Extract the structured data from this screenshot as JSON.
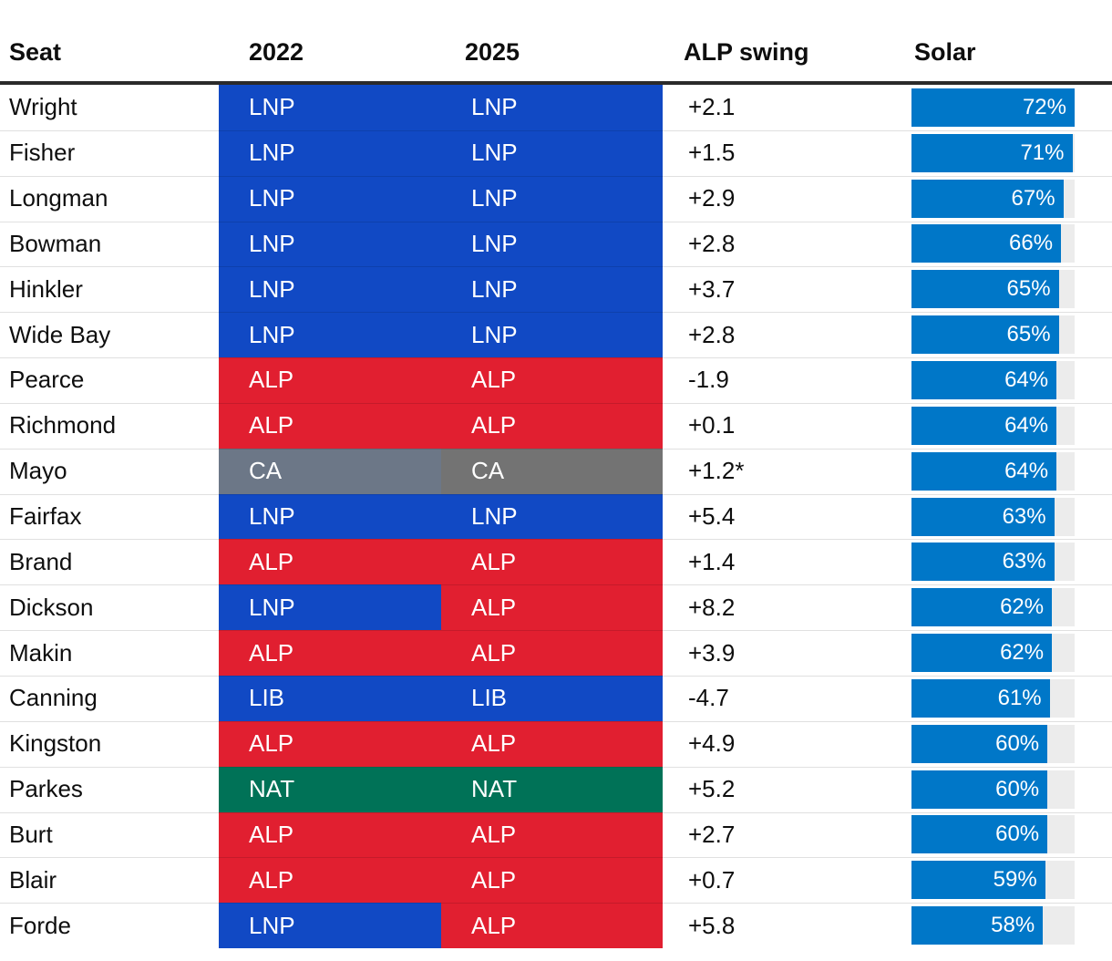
{
  "header": {
    "columns": [
      "Seat",
      "2022",
      "2025",
      "ALP swing",
      "Solar"
    ]
  },
  "party_colors": {
    "2022": {
      "LNP": "#1149c4",
      "LIB": "#1149c4",
      "ALP": "#e11f30",
      "CA": "#6c7787",
      "NAT": "#007257"
    },
    "2025": {
      "LNP": "#1149c4",
      "LIB": "#1149c4",
      "ALP": "#e11f30",
      "CA": "#737373",
      "NAT": "#007257"
    }
  },
  "solar_bar_color": "#0077c8",
  "solar_track_color": "#ececec",
  "chart_data": {
    "type": "table",
    "columns": [
      "Seat",
      "2022",
      "2025",
      "ALP swing",
      "Solar"
    ],
    "solar_axis_max": 72,
    "rows": [
      {
        "seat": "Wright",
        "party_2022": "LNP",
        "party_2025": "LNP",
        "alp_swing": "+2.1",
        "solar_pct": 72,
        "solar_label": "72%"
      },
      {
        "seat": "Fisher",
        "party_2022": "LNP",
        "party_2025": "LNP",
        "alp_swing": "+1.5",
        "solar_pct": 71,
        "solar_label": "71%"
      },
      {
        "seat": "Longman",
        "party_2022": "LNP",
        "party_2025": "LNP",
        "alp_swing": "+2.9",
        "solar_pct": 67,
        "solar_label": "67%"
      },
      {
        "seat": "Bowman",
        "party_2022": "LNP",
        "party_2025": "LNP",
        "alp_swing": "+2.8",
        "solar_pct": 66,
        "solar_label": "66%"
      },
      {
        "seat": "Hinkler",
        "party_2022": "LNP",
        "party_2025": "LNP",
        "alp_swing": "+3.7",
        "solar_pct": 65,
        "solar_label": "65%"
      },
      {
        "seat": "Wide Bay",
        "party_2022": "LNP",
        "party_2025": "LNP",
        "alp_swing": "+2.8",
        "solar_pct": 65,
        "solar_label": "65%"
      },
      {
        "seat": "Pearce",
        "party_2022": "ALP",
        "party_2025": "ALP",
        "alp_swing": "-1.9",
        "solar_pct": 64,
        "solar_label": "64%"
      },
      {
        "seat": "Richmond",
        "party_2022": "ALP",
        "party_2025": "ALP",
        "alp_swing": "+0.1",
        "solar_pct": 64,
        "solar_label": "64%"
      },
      {
        "seat": "Mayo",
        "party_2022": "CA",
        "party_2025": "CA",
        "alp_swing": "+1.2*",
        "solar_pct": 64,
        "solar_label": "64%"
      },
      {
        "seat": "Fairfax",
        "party_2022": "LNP",
        "party_2025": "LNP",
        "alp_swing": "+5.4",
        "solar_pct": 63,
        "solar_label": "63%"
      },
      {
        "seat": "Brand",
        "party_2022": "ALP",
        "party_2025": "ALP",
        "alp_swing": "+1.4",
        "solar_pct": 63,
        "solar_label": "63%"
      },
      {
        "seat": "Dickson",
        "party_2022": "LNP",
        "party_2025": "ALP",
        "alp_swing": "+8.2",
        "solar_pct": 62,
        "solar_label": "62%"
      },
      {
        "seat": "Makin",
        "party_2022": "ALP",
        "party_2025": "ALP",
        "alp_swing": "+3.9",
        "solar_pct": 62,
        "solar_label": "62%"
      },
      {
        "seat": "Canning",
        "party_2022": "LIB",
        "party_2025": "LIB",
        "alp_swing": "-4.7",
        "solar_pct": 61,
        "solar_label": "61%"
      },
      {
        "seat": "Kingston",
        "party_2022": "ALP",
        "party_2025": "ALP",
        "alp_swing": "+4.9",
        "solar_pct": 60,
        "solar_label": "60%"
      },
      {
        "seat": "Parkes",
        "party_2022": "NAT",
        "party_2025": "NAT",
        "alp_swing": "+5.2",
        "solar_pct": 60,
        "solar_label": "60%"
      },
      {
        "seat": "Burt",
        "party_2022": "ALP",
        "party_2025": "ALP",
        "alp_swing": "+2.7",
        "solar_pct": 60,
        "solar_label": "60%"
      },
      {
        "seat": "Blair",
        "party_2022": "ALP",
        "party_2025": "ALP",
        "alp_swing": "+0.7",
        "solar_pct": 59,
        "solar_label": "59%"
      },
      {
        "seat": "Forde",
        "party_2022": "LNP",
        "party_2025": "ALP",
        "alp_swing": "+5.8",
        "solar_pct": 58,
        "solar_label": "58%"
      }
    ]
  }
}
